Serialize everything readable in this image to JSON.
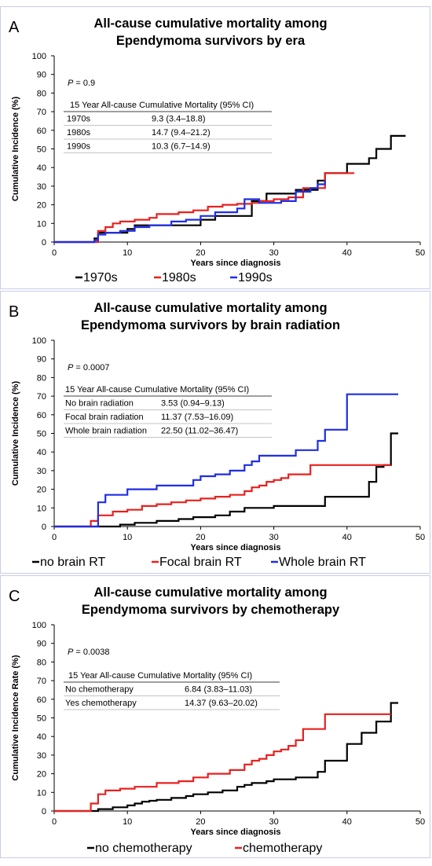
{
  "chart_data": [
    {
      "type": "line",
      "step": true,
      "panel_label": "A",
      "title": [
        "All-cause cumulative mortality among",
        "Ependymoma survivors by era"
      ],
      "xlabel": "Years since diagnosis",
      "ylabel": "Cumulative Incidence (%)",
      "xlim": [
        0,
        50
      ],
      "ylim": [
        0,
        100
      ],
      "xticks": [
        "0",
        "10",
        "20",
        "30",
        "40",
        "50"
      ],
      "yticks": [
        "0",
        "10",
        "20",
        "30",
        "40",
        "50",
        "60",
        "70",
        "80",
        "90",
        "100"
      ],
      "pvalue": {
        "label": "P",
        "value": " = 0.9"
      },
      "table": {
        "header": "15 Year All-cause Cumulative Mortality (95% CI)",
        "rows": [
          [
            "1970s",
            "9.3 (3.4–18.8)"
          ],
          [
            "1980s",
            "14.7 (9.4–21.2)"
          ],
          [
            "1990s",
            "10.3 (6.7–14.9)"
          ]
        ]
      },
      "legend_position": "bottom",
      "series": [
        {
          "name": "1970s",
          "color": "#000000",
          "x": [
            0,
            5.5,
            5.5,
            6,
            6,
            10,
            10,
            11,
            11,
            20,
            20,
            22,
            22,
            27,
            27,
            29,
            29,
            33,
            33,
            36,
            36,
            37,
            37,
            40,
            40,
            43,
            43,
            44,
            44,
            46,
            46,
            48
          ],
          "y": [
            0,
            0,
            2,
            2,
            5,
            5,
            7,
            7,
            9,
            9,
            12,
            12,
            14,
            14,
            22,
            22,
            26,
            26,
            28,
            28,
            33,
            33,
            37,
            37,
            42,
            42,
            45,
            45,
            50,
            50,
            57,
            57
          ]
        },
        {
          "name": "1980s",
          "color": "#e8211f",
          "x": [
            0,
            6,
            6,
            7,
            7,
            8,
            8,
            9,
            9,
            11,
            11,
            13,
            13,
            14,
            14,
            17,
            17,
            19,
            19,
            21,
            21,
            23,
            23,
            25,
            25,
            27,
            27,
            28,
            28,
            30,
            30,
            32,
            32,
            34,
            34,
            37,
            37,
            40,
            40,
            41
          ],
          "y": [
            0,
            0,
            6,
            6,
            8,
            8,
            10,
            10,
            11,
            11,
            12,
            12,
            13,
            13,
            15,
            15,
            16,
            16,
            17,
            17,
            19,
            19,
            20,
            20,
            20.5,
            20.5,
            21,
            21,
            22,
            22,
            23,
            23,
            24,
            24,
            29,
            29,
            37,
            37,
            37,
            37
          ]
        },
        {
          "name": "1990s",
          "color": "#1f2ee6",
          "x": [
            0,
            5.5,
            5.5,
            6,
            6,
            7,
            7,
            9,
            9,
            11,
            11,
            13,
            13,
            16,
            16,
            18,
            18,
            20,
            20,
            22,
            22,
            25,
            25,
            26,
            26,
            28,
            28,
            31,
            31,
            33,
            33,
            35,
            35,
            36,
            36,
            37,
            37
          ],
          "y": [
            0,
            0,
            1,
            1,
            4,
            4,
            5,
            5,
            6,
            6,
            8,
            8,
            9,
            9,
            11,
            11,
            12,
            12,
            14,
            14,
            16,
            16,
            18,
            18,
            23,
            23,
            21,
            21,
            22,
            22,
            27,
            27,
            29,
            29,
            31,
            31,
            33
          ]
        }
      ]
    },
    {
      "type": "line",
      "step": true,
      "panel_label": "B",
      "title": [
        "All-cause cumulative mortality among",
        "Ependymoma survivors by brain radiation"
      ],
      "xlabel": "Years since diagnosis",
      "ylabel": "Cumulative Incidence (%)",
      "xlim": [
        0,
        50
      ],
      "ylim": [
        0,
        100
      ],
      "xticks": [
        "0",
        "10",
        "20",
        "30",
        "40",
        "50"
      ],
      "yticks": [
        "0",
        "10",
        "20",
        "30",
        "40",
        "50",
        "60",
        "70",
        "80",
        "90",
        "100"
      ],
      "pvalue": {
        "label": "P",
        "value": " = 0.0007"
      },
      "table": {
        "header": "15 Year All-cause Cumulative Mortality (95% CI)",
        "rows": [
          [
            "No brain radiation",
            "3.53 (0.94–9.13)"
          ],
          [
            "Focal brain radiation",
            "11.37 (7.53–16.09)"
          ],
          [
            "Whole brain radiation",
            "22.50 (11.02–36.47)"
          ]
        ]
      },
      "legend_position": "bottom",
      "series": [
        {
          "name": "no brain RT",
          "color": "#000000",
          "x": [
            0,
            9,
            9,
            11,
            11,
            14,
            14,
            17,
            17,
            19,
            19,
            22,
            22,
            24,
            24,
            26,
            26,
            30,
            30,
            37,
            37,
            43,
            43,
            44,
            44,
            45,
            45,
            46,
            46,
            47
          ],
          "y": [
            0,
            0,
            1,
            1,
            2,
            2,
            3,
            3,
            4,
            4,
            5,
            5,
            6,
            6,
            8,
            8,
            10,
            10,
            11,
            11,
            16,
            16,
            24,
            24,
            32,
            32,
            33,
            33,
            50,
            50
          ]
        },
        {
          "name": "Focal brain RT",
          "color": "#e8211f",
          "x": [
            0,
            5,
            5,
            6,
            6,
            8,
            8,
            10,
            10,
            12,
            12,
            14,
            14,
            16,
            16,
            18,
            18,
            20,
            20,
            22,
            22,
            24,
            24,
            26,
            26,
            27,
            27,
            28,
            28,
            29,
            29,
            30,
            30,
            31,
            31,
            32,
            32,
            35,
            35,
            46
          ],
          "y": [
            0,
            0,
            3,
            3,
            6,
            6,
            8,
            8,
            9,
            9,
            11,
            11,
            12,
            12,
            13,
            13,
            14,
            14,
            15,
            15,
            16,
            16,
            17,
            17,
            19,
            19,
            21,
            21,
            22,
            22,
            24,
            24,
            25,
            25,
            26,
            26,
            28,
            28,
            33,
            33
          ]
        },
        {
          "name": "Whole brain RT",
          "color": "#1f2ee6",
          "x": [
            0,
            6,
            6,
            7,
            7,
            10,
            10,
            14,
            14,
            19,
            19,
            20,
            20,
            22,
            22,
            24,
            24,
            26,
            26,
            27,
            27,
            28,
            28,
            30,
            30,
            33,
            33,
            36,
            36,
            37,
            37,
            40,
            40,
            47
          ],
          "y": [
            0,
            0,
            13,
            13,
            17,
            17,
            20,
            20,
            22,
            22,
            25,
            25,
            27,
            27,
            28,
            28,
            30,
            30,
            33,
            33,
            35,
            35,
            38,
            38,
            38,
            38,
            41,
            41,
            46,
            46,
            52,
            52,
            71,
            71
          ]
        }
      ]
    },
    {
      "type": "line",
      "step": true,
      "panel_label": "C",
      "title": [
        "All-cause cumulative mortality among",
        "Ependymoma survivors by chemotherapy"
      ],
      "xlabel": "Years since diagnosis",
      "ylabel": "Cumulative Incidence Rate (%)",
      "xlim": [
        0,
        50
      ],
      "ylim": [
        0,
        100
      ],
      "xticks": [
        "0",
        "10",
        "20",
        "30",
        "40",
        "50"
      ],
      "yticks": [
        "0",
        "10",
        "20",
        "30",
        "40",
        "50",
        "60",
        "70",
        "80",
        "90",
        "100"
      ],
      "pvalue": {
        "label": "P",
        "value": " = 0.0038"
      },
      "table": {
        "header": "15 Year All-cause Cumulative Mortality (95% CI)",
        "rows": [
          [
            "No chemotherapy",
            "6.84 (3.83–11.03)"
          ],
          [
            "Yes chemotherapy",
            "14.37 (9.63–20.02)"
          ]
        ]
      },
      "legend_position": "bottom",
      "series": [
        {
          "name": "no chemotherapy",
          "color": "#000000",
          "x": [
            0,
            6,
            6,
            8,
            8,
            10,
            10,
            11,
            11,
            12,
            12,
            13,
            13,
            14,
            14,
            16,
            16,
            18,
            18,
            19,
            19,
            21,
            21,
            23,
            23,
            25,
            25,
            26,
            26,
            27,
            27,
            29,
            29,
            30,
            30,
            33,
            33,
            36,
            36,
            37,
            37,
            38,
            38,
            40,
            40,
            42,
            42,
            44,
            44,
            46,
            46,
            47
          ],
          "y": [
            0,
            0,
            1,
            1,
            2,
            2,
            3,
            3,
            4,
            4,
            5,
            5,
            5.5,
            5.5,
            6,
            6,
            7,
            7,
            8,
            8,
            9,
            9,
            10,
            10,
            11,
            11,
            13,
            13,
            14,
            14,
            15,
            15,
            16,
            16,
            17,
            17,
            18,
            18,
            21,
            21,
            27,
            27,
            27,
            27,
            36,
            36,
            42,
            42,
            48,
            48,
            58,
            58
          ]
        },
        {
          "name": "chemotherapy",
          "color": "#e8211f",
          "x": [
            0,
            5,
            5,
            6,
            6,
            7,
            7,
            9,
            9,
            11,
            11,
            14,
            14,
            17,
            17,
            19,
            19,
            21,
            21,
            24,
            24,
            26,
            26,
            27,
            27,
            28,
            28,
            29,
            29,
            30,
            30,
            31,
            31,
            32,
            32,
            33,
            33,
            34,
            34,
            37,
            37,
            46
          ],
          "y": [
            0,
            0,
            4,
            4,
            9,
            9,
            11,
            11,
            12,
            12,
            13,
            13,
            15,
            15,
            16,
            16,
            18,
            18,
            20,
            20,
            22,
            22,
            25,
            25,
            27,
            27,
            28,
            28,
            30,
            30,
            32,
            32,
            33,
            33,
            35,
            35,
            38,
            38,
            44,
            44,
            52,
            52
          ]
        }
      ]
    }
  ]
}
